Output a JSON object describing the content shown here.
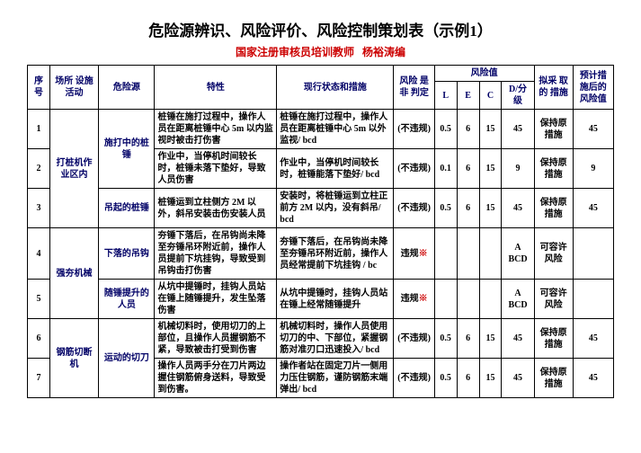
{
  "title": "危险源辨识、风险评价、风险控制策划表（示例1）",
  "subtitle_left": "国家注册审核员培训教师",
  "subtitle_right": "杨裕涛编",
  "headers": {
    "seq": "序号",
    "place": "场所\n设施\n活动",
    "hazard": "危险源",
    "char": "特性",
    "status": "现行状态和措施",
    "judge": "风险\n是非\n判定",
    "riskval": "风险值",
    "L": "L",
    "E": "E",
    "C": "C",
    "D": "D/分\n级",
    "action": "拟采\n取的\n措施",
    "post": "预计措\n施后的\n风险值"
  },
  "rows": [
    {
      "seq": "1",
      "place": "",
      "hazard": "施打中的桩锤",
      "char": "桩锤在施打过程中，操作人员在距离桩锤中心 5m 以内监视时被击打伤害",
      "status": "桩锤在施打过程中，操作人员在距离桩锤中心 5m 以外监视/ bcd",
      "judge": "(不违规)",
      "L": "0.5",
      "E": "6",
      "C": "15",
      "D": "45",
      "action": "保持原措施",
      "post": "45"
    },
    {
      "seq": "2",
      "place": "打桩机作业区内",
      "hazard": "",
      "char": "作业中，当停机时间较长时，桩锤未落下垫好，导致人员伤害",
      "status": "作业中，当停机时间较长时，桩锤能落下垫好/ bcd",
      "judge": "(不违规)",
      "L": "0.1",
      "E": "6",
      "C": "15",
      "D": "9",
      "action": "保持原措施",
      "post": "9"
    },
    {
      "seq": "3",
      "place": "",
      "hazard": "吊起的桩锤",
      "char": "桩锤运到立柱侧方 2M 以外，斜吊安装击伤安装人员",
      "status": "安装时，将桩锤运到立柱正前方 2M 以内，没有斜吊/ bcd",
      "judge": "(不违规)",
      "L": "0.5",
      "E": "6",
      "C": "15",
      "D": "45",
      "action": "保持原措施",
      "post": "45"
    },
    {
      "seq": "4",
      "place": "",
      "hazard": "下落的吊钩",
      "char": "夯锤下落后，在吊钩尚未降至夯锤吊环附近前，操作人员提前下坑挂钩，导致受到吊钩击打伤害",
      "status": "夯锤下落后，在吊钩尚未降至夯锤吊环附近前，操作人员经常提前下坑挂钩 / bc",
      "judge": "违规※",
      "L": "",
      "E": "",
      "C": "",
      "D": "A\nBCD",
      "action": "可容许风险",
      "post": ""
    },
    {
      "seq": "5",
      "place": "强夯机械",
      "hazard": "随锤提升的人员",
      "char": "从坑中提锤时，挂钩人员站在锤上随锤提升，发生坠落伤害",
      "status": "从坑中提锤时，挂钩人员站在锤上经常随锤提升",
      "judge": "违规※",
      "L": "",
      "E": "",
      "C": "",
      "D": "A\nBCD",
      "action": "可容许风险",
      "post": ""
    },
    {
      "seq": "6",
      "place": "钢筋切断机",
      "hazard": "运动的切刀",
      "char": "机械切料时，使用切刀的上部位，且操作人员握钢筋不紧，导致被击打受到伤害",
      "status": "机械切料时，操作人员使用切刀的中、下部位，紧握钢筋对准刃口迅速投入/ bcd",
      "judge": "(不违规)",
      "L": "0.5",
      "E": "6",
      "C": "15",
      "D": "45",
      "action": "保持原措施",
      "post": "45"
    },
    {
      "seq": "7",
      "place": "",
      "hazard": "",
      "char": "操作人员两手分在刀片两边握住钢筋俯身送料，导致受到伤害。",
      "status": "操作者站在固定刀片一侧用力压住钢筋，谨防钢筋末端弹出/ bcd",
      "judge": "(不违规)",
      "L": "0.5",
      "E": "6",
      "C": "15",
      "D": "45",
      "action": "保持原措施",
      "post": "45"
    }
  ]
}
